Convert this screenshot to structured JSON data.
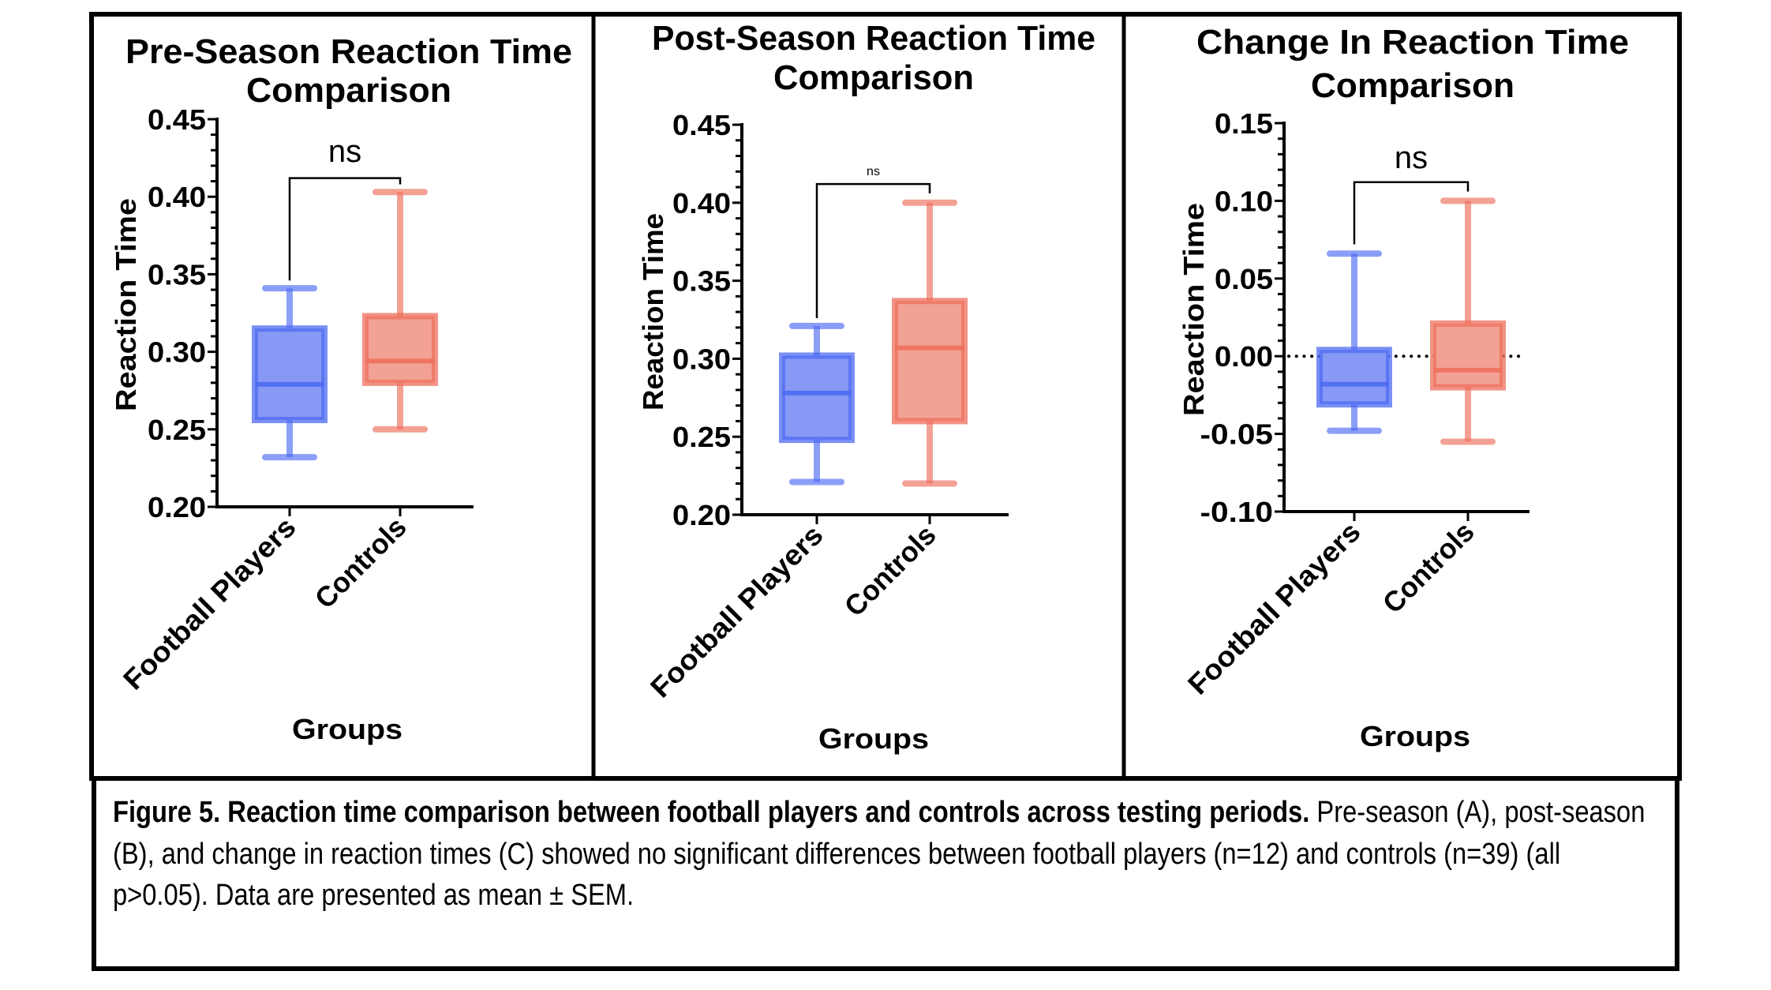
{
  "figure": {
    "caption": {
      "bold": "Figure 5. Reaction time comparison between football players and controls across testing periods.",
      "text": " Pre-season (A), post-season (B), and change in reaction times (C) showed no significant differences between football players (n=12) and controls (n=39) (all p>0.05). Data are presented as mean ± SEM."
    },
    "colors": {
      "football_players": "#4D6BF2",
      "football_players_fill": "#8899F5",
      "controls": "#EE6F5C",
      "controls_fill": "#F2A294",
      "bracket": "#000000"
    }
  },
  "chart_data": [
    {
      "type": "box",
      "panel": "A",
      "title_lines": [
        "Pre-Season Reaction Time",
        "Comparison"
      ],
      "xlabel": "Groups",
      "ylabel": "Reaction Time",
      "ylim": [
        0.2,
        0.45
      ],
      "yticks": [
        "0.20",
        "0.25",
        "0.30",
        "0.35",
        "0.40",
        "0.45"
      ],
      "ytick_values": [
        0.2,
        0.25,
        0.3,
        0.35,
        0.4,
        0.45
      ],
      "minor_ticks_per_major": 5,
      "categories": [
        "Football Players",
        "Controls"
      ],
      "series": [
        {
          "name": "Football Players",
          "min": 0.232,
          "q1": 0.256,
          "median": 0.279,
          "q3": 0.315,
          "max": 0.341
        },
        {
          "name": "Controls",
          "min": 0.25,
          "q1": 0.28,
          "median": 0.294,
          "q3": 0.323,
          "max": 0.403
        }
      ],
      "reference_line": null,
      "significance": {
        "label": "ns",
        "label_size": "large",
        "bracket_y": 0.412,
        "left_drop_to": 0.346,
        "right_drop_to": 0.408
      }
    },
    {
      "type": "box",
      "panel": "B",
      "title_lines": [
        "Post-Season Reaction Time",
        "Comparison"
      ],
      "xlabel": "Groups",
      "ylabel": "Reaction Time",
      "ylim": [
        0.2,
        0.45
      ],
      "yticks": [
        "0.20",
        "0.25",
        "0.30",
        "0.35",
        "0.40",
        "0.45"
      ],
      "ytick_values": [
        0.2,
        0.25,
        0.3,
        0.35,
        0.4,
        0.45
      ],
      "minor_ticks_per_major": 5,
      "categories": [
        "Football Players",
        "Controls"
      ],
      "series": [
        {
          "name": "Football Players",
          "min": 0.221,
          "q1": 0.248,
          "median": 0.278,
          "q3": 0.302,
          "max": 0.321
        },
        {
          "name": "Controls",
          "min": 0.22,
          "q1": 0.26,
          "median": 0.307,
          "q3": 0.337,
          "max": 0.4
        }
      ],
      "reference_line": null,
      "significance": {
        "label": "ns",
        "label_size": "small",
        "bracket_y": 0.412,
        "left_drop_to": 0.326,
        "right_drop_to": 0.406
      }
    },
    {
      "type": "box",
      "panel": "C",
      "title_lines": [
        "Change In Reaction Time",
        "Comparison"
      ],
      "xlabel": "Groups",
      "ylabel": "Reaction Time",
      "ylim": [
        -0.1,
        0.15
      ],
      "yticks": [
        "-0.10",
        "-0.05",
        "0.00",
        "0.05",
        "0.10",
        "0.15"
      ],
      "ytick_values": [
        -0.1,
        -0.05,
        0.0,
        0.05,
        0.1,
        0.15
      ],
      "minor_ticks_per_major": 5,
      "categories": [
        "Football Players",
        "Controls"
      ],
      "series": [
        {
          "name": "Football Players",
          "min": -0.048,
          "q1": -0.031,
          "median": -0.018,
          "q3": 0.004,
          "max": 0.066
        },
        {
          "name": "Controls",
          "min": -0.055,
          "q1": -0.02,
          "median": -0.009,
          "q3": 0.021,
          "max": 0.1
        }
      ],
      "reference_line": {
        "y": 0.0,
        "style": "dotted"
      },
      "significance": {
        "label": "ns",
        "label_size": "large",
        "bracket_y": 0.112,
        "left_drop_to": 0.072,
        "right_drop_to": 0.106
      }
    }
  ]
}
